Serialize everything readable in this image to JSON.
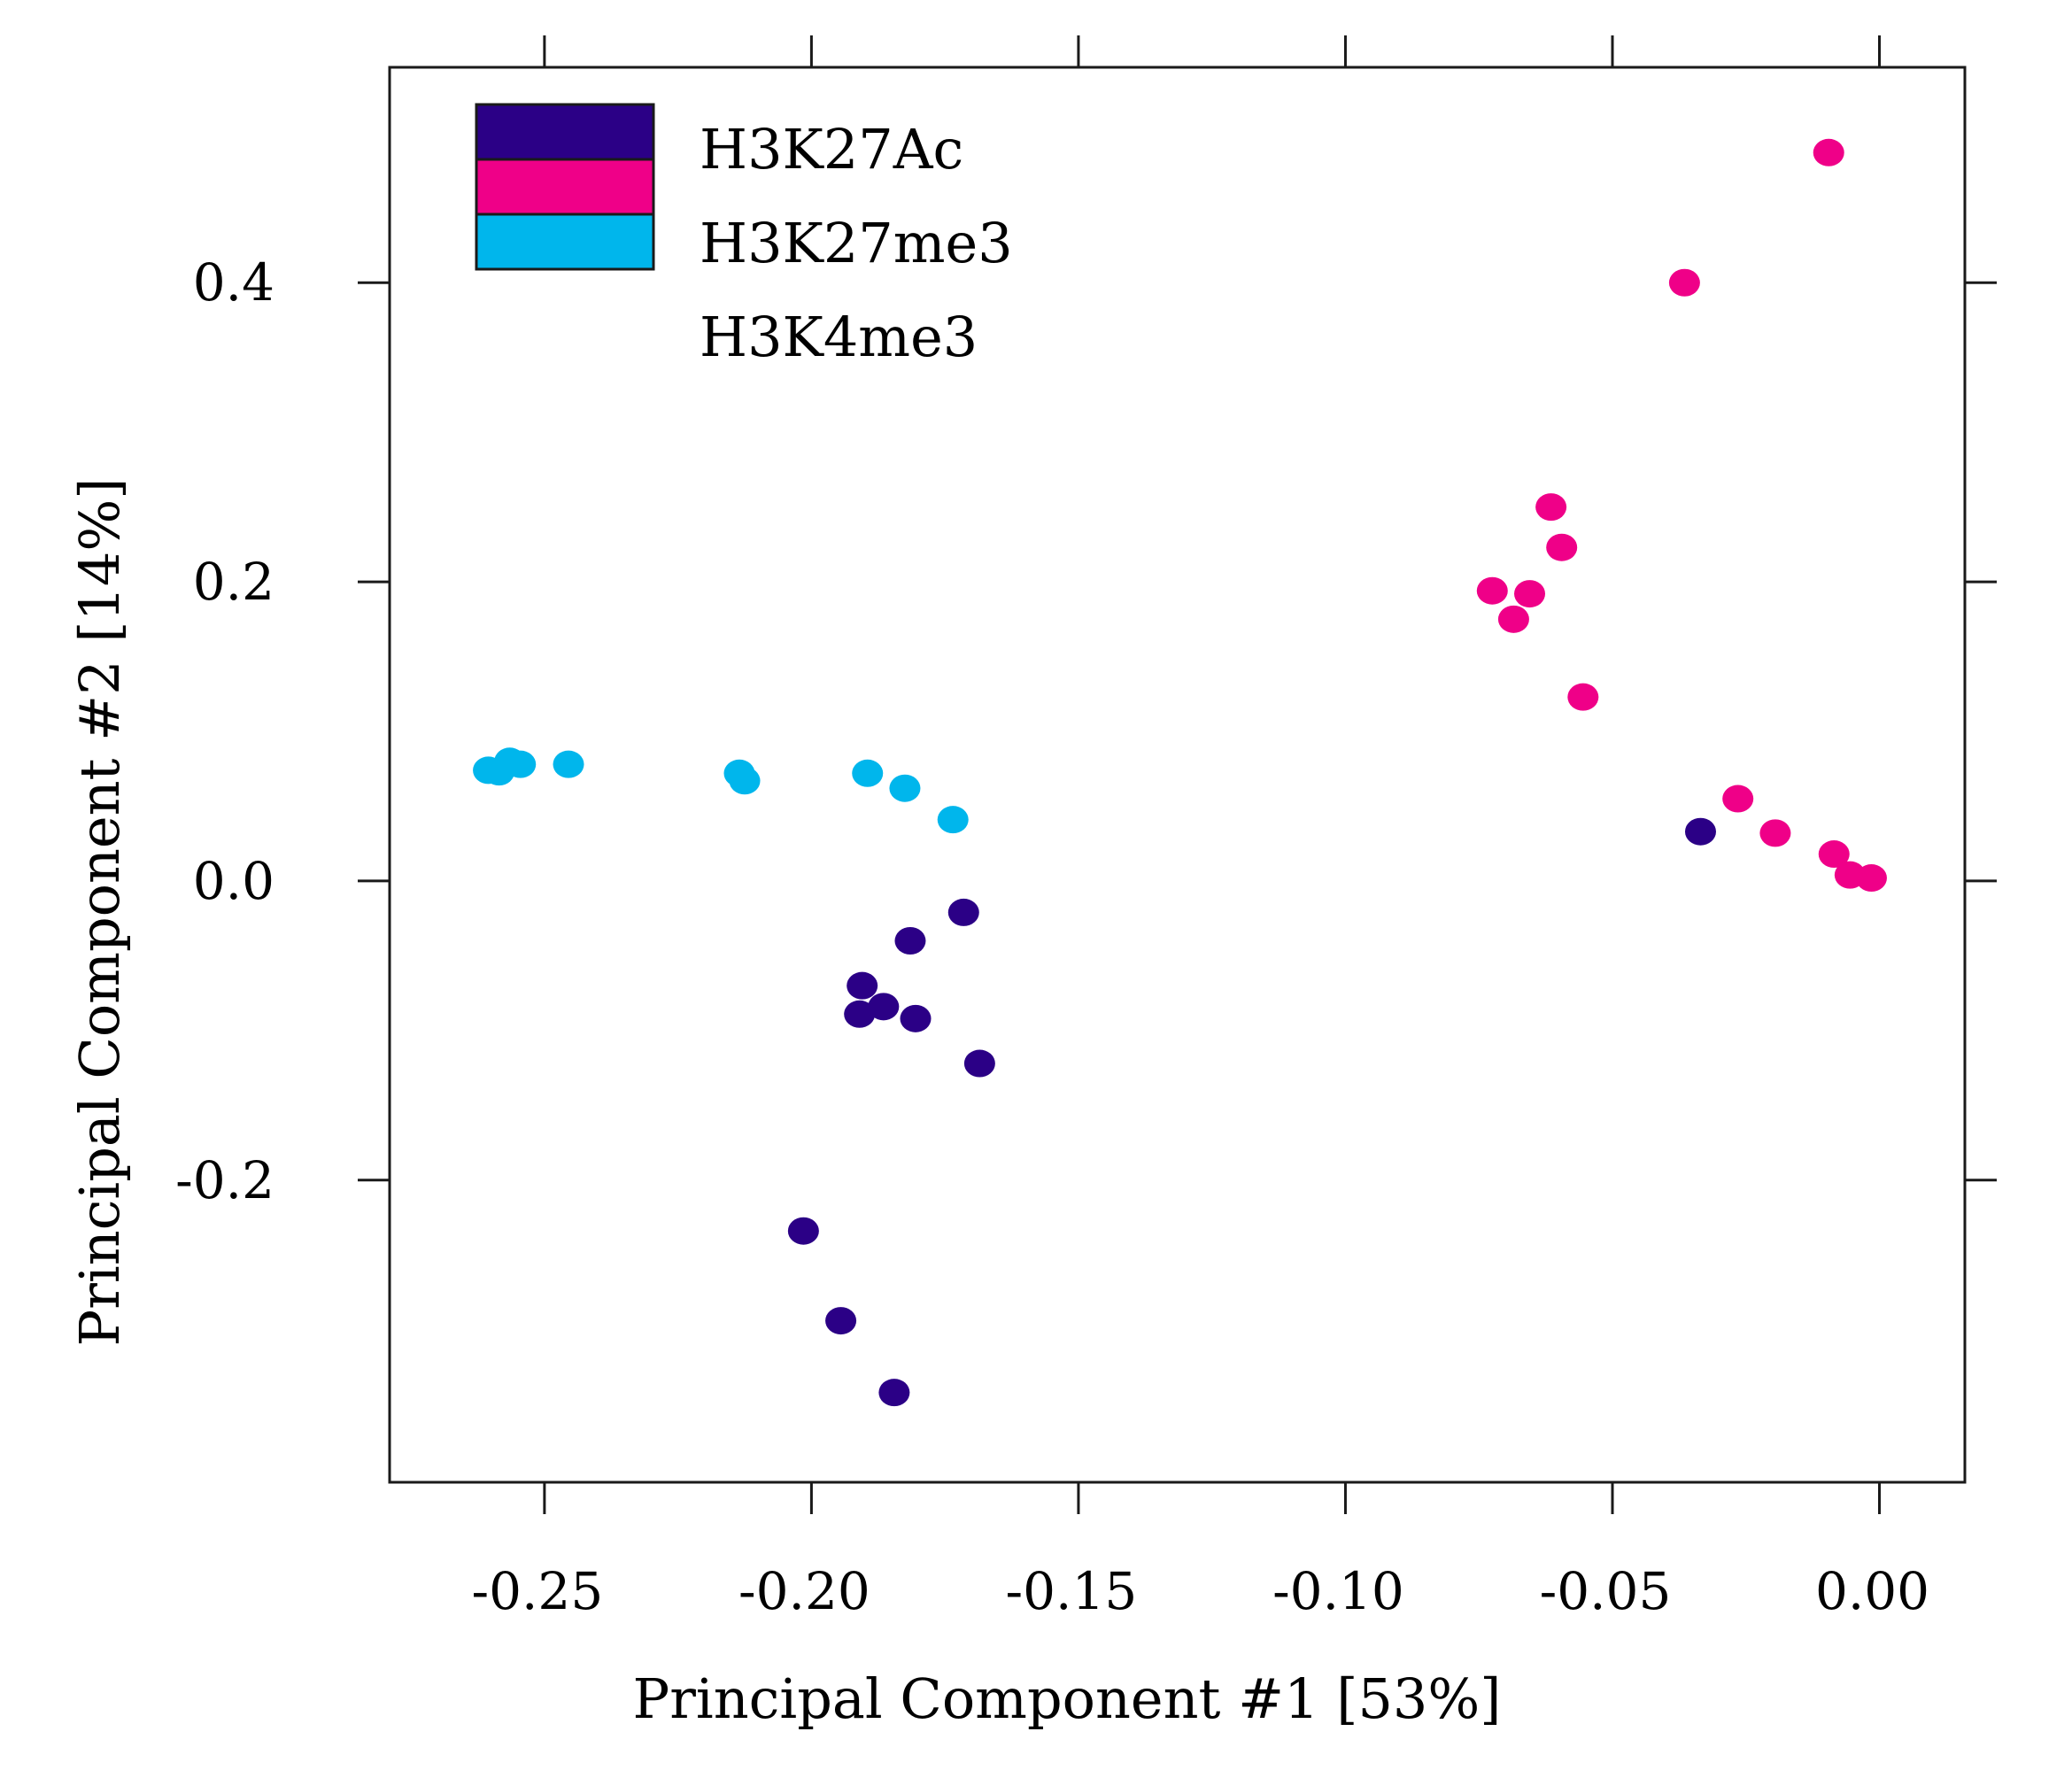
{
  "chart_data": {
    "type": "scatter",
    "title": "",
    "xlabel": "Principal Component #1 [53%]",
    "ylabel": "Principal Component #2 [14%]",
    "xlim": [
      -0.279,
      0.016
    ],
    "ylim": [
      -0.402,
      0.544
    ],
    "x_ticks": [
      -0.25,
      -0.2,
      -0.15,
      -0.1,
      -0.05,
      0.0
    ],
    "x_tick_labels": [
      "-0.25",
      "-0.20",
      "-0.15",
      "-0.10",
      "-0.05",
      "0.00"
    ],
    "y_ticks": [
      -0.2,
      0.0,
      0.2,
      0.4
    ],
    "y_tick_labels": [
      "-0.2",
      "0.0",
      "0.2",
      "0.4"
    ],
    "grid": false,
    "legend_position": "top-left",
    "legend": [
      {
        "label": "H3K27Ac",
        "color": "#2b0086"
      },
      {
        "label": "H3K27me3",
        "color": "#ef0088"
      },
      {
        "label": "H3K4me3",
        "color": "#00b6ec"
      }
    ],
    "series": [
      {
        "name": "H3K27Ac",
        "color": "#2b0086",
        "points": [
          [
            -0.1715,
            -0.021
          ],
          [
            -0.1815,
            -0.04
          ],
          [
            -0.1905,
            -0.07
          ],
          [
            -0.1865,
            -0.084
          ],
          [
            -0.191,
            -0.089
          ],
          [
            -0.1805,
            -0.092
          ],
          [
            -0.1685,
            -0.122
          ],
          [
            -0.2015,
            -0.234
          ],
          [
            -0.1945,
            -0.294
          ],
          [
            -0.1845,
            -0.342
          ],
          [
            -0.0335,
            0.033
          ]
        ]
      },
      {
        "name": "H3K27me3",
        "color": "#ef0088",
        "points": [
          [
            -0.0095,
            0.487
          ],
          [
            -0.0365,
            0.4
          ],
          [
            -0.0615,
            0.25
          ],
          [
            -0.0595,
            0.223
          ],
          [
            -0.0725,
            0.194
          ],
          [
            -0.0655,
            0.192
          ],
          [
            -0.0685,
            0.175
          ],
          [
            -0.0555,
            0.123
          ],
          [
            -0.0265,
            0.055
          ],
          [
            -0.0195,
            0.032
          ],
          [
            -0.0085,
            0.018
          ],
          [
            -0.0055,
            0.004
          ],
          [
            -0.0015,
            0.002
          ]
        ]
      },
      {
        "name": "H3K4me3",
        "color": "#00b6ec",
        "points": [
          [
            -0.2605,
            0.074
          ],
          [
            -0.2585,
            0.073
          ],
          [
            -0.2565,
            0.08
          ],
          [
            -0.2545,
            0.078
          ],
          [
            -0.2455,
            0.078
          ],
          [
            -0.2135,
            0.072
          ],
          [
            -0.2125,
            0.067
          ],
          [
            -0.1895,
            0.072
          ],
          [
            -0.1825,
            0.062
          ],
          [
            -0.1735,
            0.041
          ]
        ]
      }
    ]
  }
}
